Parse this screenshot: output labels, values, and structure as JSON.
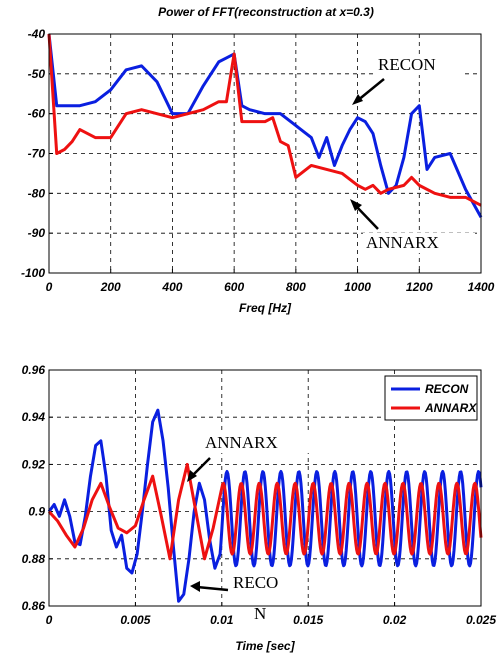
{
  "chart_data": [
    {
      "type": "line",
      "title": "Power of FFT(reconstruction at x=0.3)",
      "xlabel": "Freq [Hz]",
      "ylabel": "",
      "xlim": [
        0,
        1400
      ],
      "ylim": [
        -100,
        -40
      ],
      "xticks": [
        "0",
        "200",
        "400",
        "600",
        "800",
        "1000",
        "1200",
        "1400"
      ],
      "yticks": [
        "-40",
        "-50",
        "-60",
        "-70",
        "-80",
        "-90",
        "-100"
      ],
      "grid": true,
      "series": [
        {
          "name": "RECON",
          "color": "#0a1fe0",
          "x": [
            0,
            25,
            50,
            100,
            150,
            200,
            250,
            300,
            350,
            400,
            450,
            500,
            550,
            575,
            600,
            625,
            650,
            700,
            750,
            800,
            850,
            875,
            900,
            925,
            950,
            975,
            1000,
            1025,
            1050,
            1075,
            1100,
            1125,
            1150,
            1175,
            1200,
            1225,
            1250,
            1300,
            1350,
            1400
          ],
          "y": [
            -40,
            -58,
            -58,
            -58,
            -57,
            -54,
            -49,
            -48,
            -52,
            -60,
            -60,
            -53,
            -47,
            -46,
            -45,
            -58,
            -59,
            -60,
            -60,
            -63,
            -66,
            -71,
            -66,
            -73,
            -68,
            -64,
            -61,
            -62,
            -65,
            -73,
            -80,
            -78,
            -71,
            -60,
            -58,
            -74,
            -71,
            -70,
            -79,
            -86
          ]
        },
        {
          "name": "ANNARX",
          "color": "#ee1111",
          "x": [
            0,
            25,
            50,
            75,
            100,
            125,
            150,
            200,
            250,
            300,
            350,
            400,
            450,
            500,
            550,
            575,
            600,
            625,
            650,
            700,
            725,
            750,
            775,
            800,
            850,
            900,
            950,
            1000,
            1025,
            1050,
            1075,
            1100,
            1150,
            1175,
            1200,
            1250,
            1300,
            1350,
            1400
          ],
          "y": [
            -40,
            -70,
            -69,
            -67,
            -64,
            -65,
            -66,
            -66,
            -60,
            -59,
            -60,
            -61,
            -60,
            -59,
            -57,
            -57,
            -45,
            -62,
            -62,
            -62,
            -61,
            -67,
            -68,
            -76,
            -73,
            -74,
            -75,
            -78,
            -79,
            -78,
            -80,
            -79,
            -78,
            -76,
            -78,
            -80,
            -81,
            -81,
            -83
          ]
        }
      ],
      "annotations": [
        "RECON",
        "ANNARX"
      ]
    },
    {
      "type": "line",
      "title": "",
      "xlabel": "Time [sec]",
      "ylabel": "",
      "xlim": [
        0,
        0.025
      ],
      "ylim": [
        0.86,
        0.96
      ],
      "xticks": [
        "0",
        "0.005",
        "0.01",
        "0.015",
        "0.02",
        "0.025"
      ],
      "yticks": [
        "0.96",
        "0.94",
        "0.92",
        "0.9",
        "0.88",
        "0.86"
      ],
      "grid": true,
      "legend": "top-right",
      "series": [
        {
          "name": "RECON",
          "color": "#0a1fe0",
          "x": [
            0,
            0.0003,
            0.0006,
            0.0009,
            0.0012,
            0.0015,
            0.0018,
            0.0021,
            0.0024,
            0.0027,
            0.003,
            0.0033,
            0.0036,
            0.0039,
            0.0042,
            0.0045,
            0.0048,
            0.0051,
            0.0054,
            0.0057,
            0.006,
            0.0063,
            0.0066,
            0.0069,
            0.0072,
            0.0075,
            0.0078,
            0.0081,
            0.0084,
            0.0087,
            0.009,
            0.0093,
            0.0096,
            0.0099
          ],
          "y": [
            0.9,
            0.903,
            0.898,
            0.905,
            0.898,
            0.887,
            0.886,
            0.898,
            0.915,
            0.928,
            0.93,
            0.915,
            0.892,
            0.885,
            0.89,
            0.876,
            0.874,
            0.882,
            0.9,
            0.92,
            0.938,
            0.943,
            0.93,
            0.91,
            0.885,
            0.862,
            0.865,
            0.88,
            0.9,
            0.912,
            0.905,
            0.888,
            0.876,
            0.882
          ],
          "oscillation": {
            "x_start": 0.0099,
            "x_end": 0.025,
            "mean": 0.897,
            "amplitude": 0.02,
            "period": 0.00104
          }
        },
        {
          "name": "ANNARX",
          "color": "#ee1111",
          "x": [
            0,
            0.0005,
            0.001,
            0.0015,
            0.002,
            0.0025,
            0.003,
            0.0035,
            0.004,
            0.0045,
            0.005,
            0.0055,
            0.006,
            0.0065,
            0.007,
            0.0075,
            0.008,
            0.0085,
            0.009,
            0.0095,
            0.01
          ],
          "y": [
            0.9,
            0.896,
            0.89,
            0.885,
            0.893,
            0.905,
            0.912,
            0.902,
            0.893,
            0.891,
            0.894,
            0.905,
            0.915,
            0.898,
            0.88,
            0.905,
            0.92,
            0.9,
            0.88,
            0.893,
            0.91
          ],
          "oscillation": {
            "x_start": 0.01,
            "x_end": 0.025,
            "mean": 0.897,
            "amplitude": 0.015,
            "period": 0.00104
          }
        }
      ],
      "annotations": [
        "ANNARX",
        "RECO",
        "N"
      ]
    }
  ]
}
